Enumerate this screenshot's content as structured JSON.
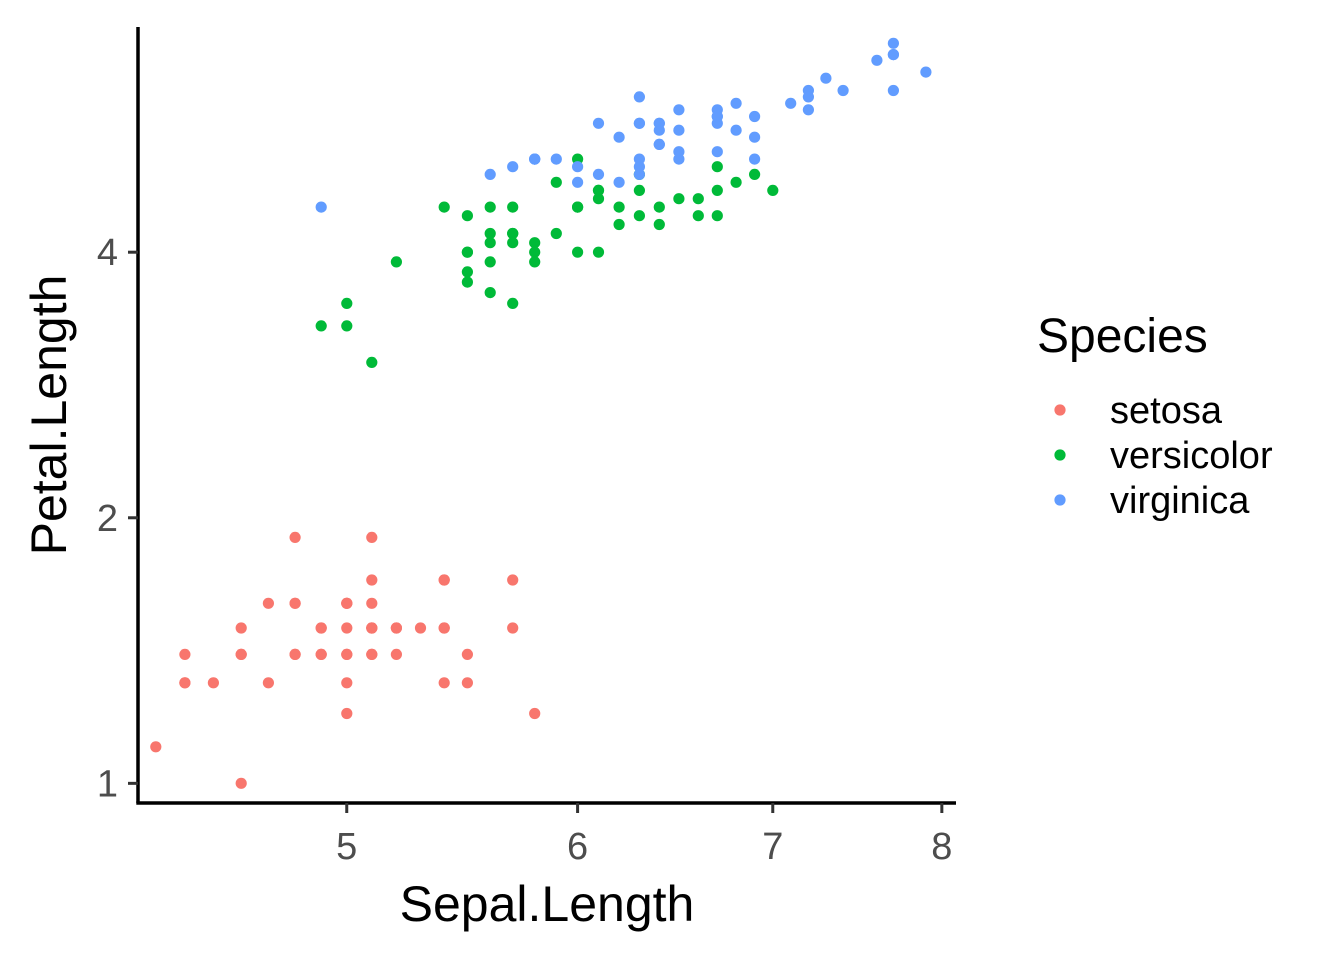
{
  "chart_data": {
    "type": "scatter",
    "xlabel": "Sepal.Length",
    "ylabel": "Petal.Length",
    "x_scale": "log",
    "y_scale": "log",
    "xlim": [
      4.24,
      8.09
    ],
    "ylim": [
      0.95,
      7.2
    ],
    "x_ticks": [
      5,
      6,
      7,
      8
    ],
    "y_ticks": [
      1,
      2,
      4
    ],
    "grid": false,
    "legend": {
      "title": "Species",
      "position": "right"
    },
    "series": [
      {
        "name": "setosa",
        "color": "#F8766D",
        "points": [
          [
            5.1,
            1.4
          ],
          [
            4.9,
            1.4
          ],
          [
            4.7,
            1.3
          ],
          [
            4.6,
            1.5
          ],
          [
            5.0,
            1.4
          ],
          [
            5.4,
            1.7
          ],
          [
            4.6,
            1.4
          ],
          [
            5.0,
            1.5
          ],
          [
            4.4,
            1.4
          ],
          [
            4.9,
            1.5
          ],
          [
            5.4,
            1.5
          ],
          [
            4.8,
            1.6
          ],
          [
            4.8,
            1.4
          ],
          [
            4.3,
            1.1
          ],
          [
            5.8,
            1.2
          ],
          [
            5.7,
            1.5
          ],
          [
            5.4,
            1.3
          ],
          [
            5.1,
            1.4
          ],
          [
            5.7,
            1.7
          ],
          [
            5.1,
            1.5
          ],
          [
            5.4,
            1.7
          ],
          [
            5.1,
            1.5
          ],
          [
            4.6,
            1.0
          ],
          [
            5.1,
            1.7
          ],
          [
            4.8,
            1.9
          ],
          [
            5.0,
            1.6
          ],
          [
            5.0,
            1.6
          ],
          [
            5.2,
            1.5
          ],
          [
            5.2,
            1.4
          ],
          [
            4.7,
            1.6
          ],
          [
            4.8,
            1.6
          ],
          [
            5.4,
            1.5
          ],
          [
            5.2,
            1.5
          ],
          [
            5.5,
            1.4
          ],
          [
            4.9,
            1.5
          ],
          [
            5.0,
            1.2
          ],
          [
            5.5,
            1.3
          ],
          [
            4.9,
            1.4
          ],
          [
            4.4,
            1.3
          ],
          [
            5.1,
            1.5
          ],
          [
            5.0,
            1.3
          ],
          [
            4.5,
            1.3
          ],
          [
            4.4,
            1.3
          ],
          [
            5.0,
            1.6
          ],
          [
            5.1,
            1.9
          ],
          [
            4.8,
            1.4
          ],
          [
            5.1,
            1.6
          ],
          [
            4.6,
            1.4
          ],
          [
            5.3,
            1.5
          ],
          [
            5.0,
            1.4
          ]
        ]
      },
      {
        "name": "versicolor",
        "color": "#00BA38",
        "points": [
          [
            7.0,
            4.7
          ],
          [
            6.4,
            4.5
          ],
          [
            6.9,
            4.9
          ],
          [
            5.5,
            4.0
          ],
          [
            6.5,
            4.6
          ],
          [
            5.7,
            4.5
          ],
          [
            6.3,
            4.7
          ],
          [
            4.9,
            3.3
          ],
          [
            6.6,
            4.6
          ],
          [
            5.2,
            3.9
          ],
          [
            5.0,
            3.5
          ],
          [
            5.9,
            4.2
          ],
          [
            6.0,
            4.0
          ],
          [
            6.1,
            4.7
          ],
          [
            5.6,
            3.6
          ],
          [
            6.7,
            4.4
          ],
          [
            5.6,
            4.5
          ],
          [
            5.8,
            4.1
          ],
          [
            6.2,
            4.5
          ],
          [
            5.6,
            3.9
          ],
          [
            5.9,
            4.8
          ],
          [
            6.1,
            4.0
          ],
          [
            6.3,
            4.9
          ],
          [
            6.1,
            4.7
          ],
          [
            6.4,
            4.3
          ],
          [
            6.6,
            4.4
          ],
          [
            6.8,
            4.8
          ],
          [
            6.7,
            5.0
          ],
          [
            6.0,
            4.5
          ],
          [
            5.7,
            3.5
          ],
          [
            5.5,
            3.8
          ],
          [
            5.5,
            3.7
          ],
          [
            5.8,
            3.9
          ],
          [
            6.0,
            5.1
          ],
          [
            5.4,
            4.5
          ],
          [
            6.0,
            4.5
          ],
          [
            6.7,
            4.7
          ],
          [
            6.3,
            4.4
          ],
          [
            5.6,
            4.1
          ],
          [
            5.5,
            4.0
          ],
          [
            5.5,
            4.4
          ],
          [
            6.1,
            4.6
          ],
          [
            5.8,
            4.0
          ],
          [
            5.0,
            3.3
          ],
          [
            5.6,
            4.2
          ],
          [
            5.7,
            4.2
          ],
          [
            5.7,
            4.2
          ],
          [
            6.2,
            4.3
          ],
          [
            5.1,
            3.0
          ],
          [
            5.7,
            4.1
          ]
        ]
      },
      {
        "name": "virginica",
        "color": "#619CFF",
        "points": [
          [
            6.3,
            6.0
          ],
          [
            5.8,
            5.1
          ],
          [
            7.1,
            5.9
          ],
          [
            6.3,
            5.6
          ],
          [
            6.5,
            5.8
          ],
          [
            7.6,
            6.6
          ],
          [
            4.9,
            4.5
          ],
          [
            7.3,
            6.3
          ],
          [
            6.7,
            5.8
          ],
          [
            7.2,
            6.1
          ],
          [
            6.5,
            5.1
          ],
          [
            6.4,
            5.3
          ],
          [
            6.8,
            5.5
          ],
          [
            5.7,
            5.0
          ],
          [
            5.8,
            5.1
          ],
          [
            6.4,
            5.3
          ],
          [
            6.5,
            5.5
          ],
          [
            7.7,
            6.7
          ],
          [
            7.7,
            6.9
          ],
          [
            6.0,
            5.0
          ],
          [
            6.9,
            5.7
          ],
          [
            5.6,
            4.9
          ],
          [
            7.7,
            6.7
          ],
          [
            6.3,
            4.9
          ],
          [
            6.7,
            5.7
          ],
          [
            7.2,
            6.0
          ],
          [
            6.2,
            4.8
          ],
          [
            6.1,
            4.9
          ],
          [
            6.4,
            5.6
          ],
          [
            7.2,
            5.8
          ],
          [
            7.4,
            6.1
          ],
          [
            7.9,
            6.4
          ],
          [
            6.4,
            5.6
          ],
          [
            6.3,
            5.1
          ],
          [
            6.1,
            5.6
          ],
          [
            7.7,
            6.1
          ],
          [
            6.3,
            5.6
          ],
          [
            6.4,
            5.5
          ],
          [
            6.0,
            4.8
          ],
          [
            6.9,
            5.4
          ],
          [
            6.7,
            5.6
          ],
          [
            6.9,
            5.1
          ],
          [
            5.8,
            5.1
          ],
          [
            6.8,
            5.9
          ],
          [
            6.7,
            5.7
          ],
          [
            6.7,
            5.2
          ],
          [
            6.3,
            5.0
          ],
          [
            6.5,
            5.2
          ],
          [
            6.2,
            5.4
          ],
          [
            5.9,
            5.1
          ]
        ]
      }
    ]
  }
}
